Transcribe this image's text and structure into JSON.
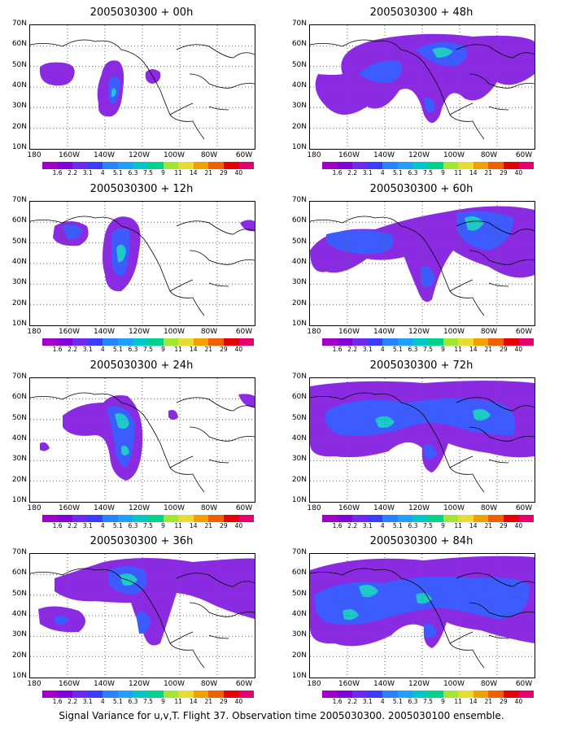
{
  "caption": "Signal Variance for u,v,T. Flight 37. Observation time 2005030300. 2005030100 ensemble.",
  "lat_labels": [
    "70N",
    "60N",
    "50N",
    "40N",
    "30N",
    "20N",
    "10N"
  ],
  "lon_labels": [
    "180",
    "160W",
    "140W",
    "120W",
    "100W",
    "80W",
    "60W"
  ],
  "colorbar": {
    "labels": [
      "1.6",
      "2.2",
      "3.1",
      "4",
      "5.1",
      "6.3",
      "7.5",
      "9",
      "11",
      "14",
      "21",
      "29",
      "40"
    ],
    "colors": [
      "#a000c8",
      "#8200dc",
      "#6e28f0",
      "#3c3cff",
      "#2882ff",
      "#1ea0ff",
      "#00c8c8",
      "#00d28c",
      "#a0e632",
      "#e6dc32",
      "#f0a000",
      "#f06000",
      "#e60000",
      "#e6006e"
    ]
  },
  "panels": [
    {
      "title": "2005030300 + 00h"
    },
    {
      "title": "2005030300 + 48h"
    },
    {
      "title": "2005030300 + 12h"
    },
    {
      "title": "2005030300 + 60h"
    },
    {
      "title": "2005030300 + 24h"
    },
    {
      "title": "2005030300 + 72h"
    },
    {
      "title": "2005030300 + 36h"
    },
    {
      "title": "2005030300 + 84h"
    }
  ]
}
